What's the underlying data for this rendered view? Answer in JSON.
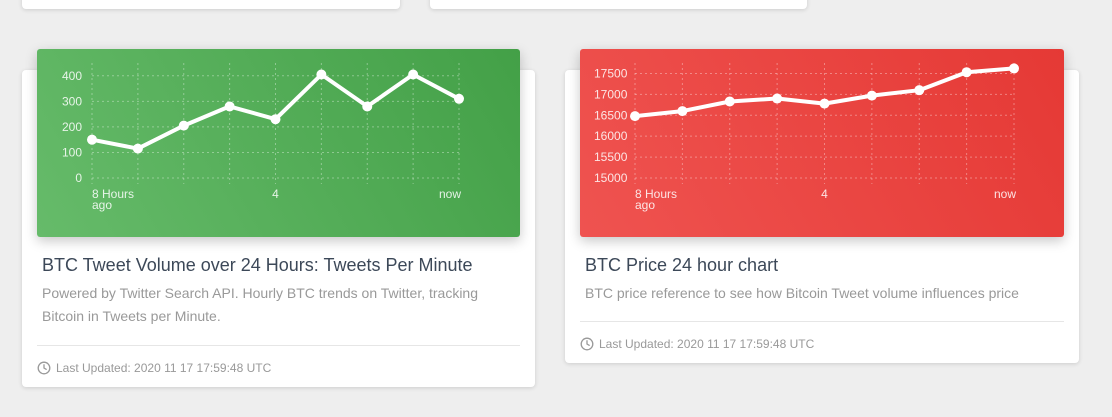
{
  "cards": [
    {
      "title": "BTC Tweet Volume over 24 Hours: Tweets Per Minute",
      "description": "Powered by Twitter Search API. Hourly BTC trends on Twitter, tracking Bitcoin in Tweets per Minute.",
      "last_updated": "Last Updated: 2020 11 17 17:59:48 UTC",
      "footer_icon": "clock-icon",
      "header_color": "#4caf50"
    },
    {
      "title": "BTC Price 24 hour chart",
      "description": "BTC price reference to see how Bitcoin Tweet volume influences price",
      "last_updated": "Last Updated: 2020 11 17 17:59:48 UTC",
      "footer_icon": "clock-icon",
      "header_color": "#f44336"
    }
  ],
  "chart_data": [
    {
      "type": "line",
      "x_tick_labels": [
        "8 Hours ago",
        "4",
        "now"
      ],
      "y_ticks": [
        "0",
        "100",
        "200",
        "300",
        "400"
      ],
      "ylim": [
        0,
        450
      ],
      "values": [
        150,
        115,
        205,
        280,
        230,
        405,
        280,
        405,
        310
      ],
      "grid": true,
      "color": "#ffffff"
    },
    {
      "type": "line",
      "x_tick_labels": [
        "8 Hours ago",
        "4",
        "now"
      ],
      "y_ticks": [
        "15000",
        "15500",
        "16000",
        "16500",
        "17000",
        "17500"
      ],
      "ylim": [
        15000,
        17750
      ],
      "values": [
        16480,
        16600,
        16830,
        16900,
        16780,
        16970,
        17100,
        17530,
        17620
      ],
      "grid": true,
      "color": "#ffffff"
    }
  ]
}
